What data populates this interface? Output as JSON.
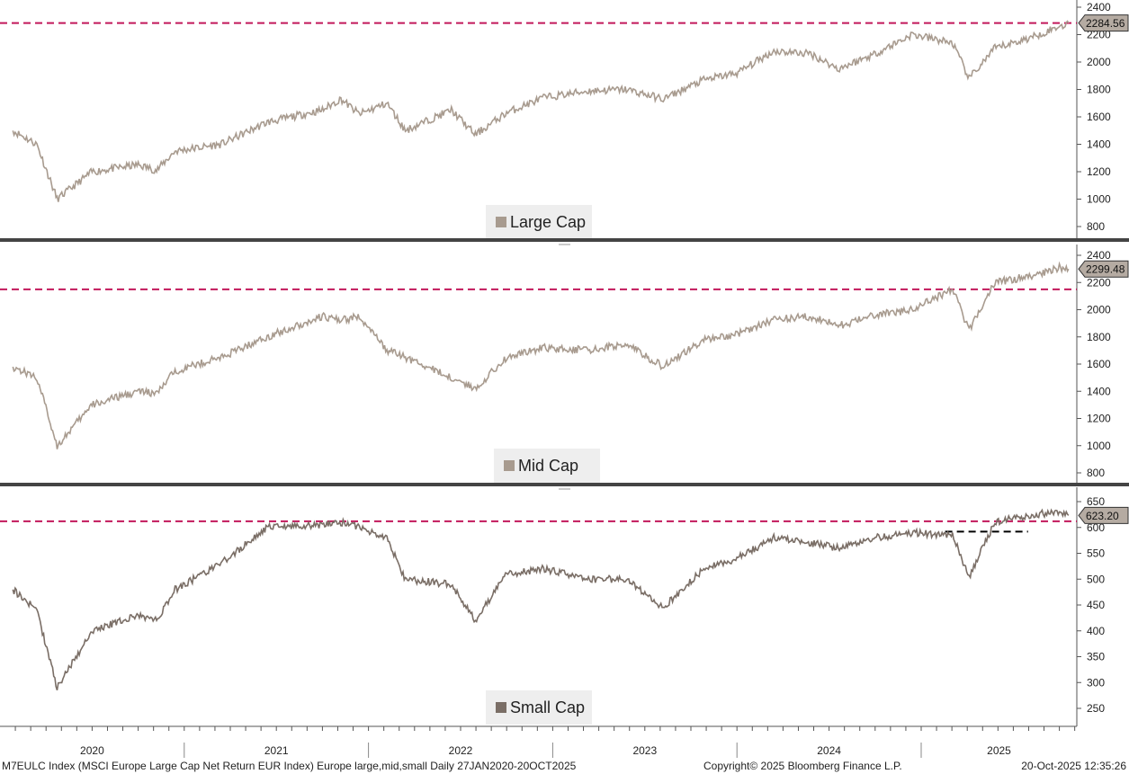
{
  "chart_data": [
    {
      "type": "line",
      "legend": "Large Cap",
      "ylim": [
        700,
        2430
      ],
      "yticks": [
        800,
        1000,
        1200,
        1400,
        1600,
        1800,
        2000,
        2200,
        2400
      ],
      "last_value_label": "2284.56",
      "last_value": 2284.56,
      "reference_line": 2284.56,
      "color": "#a89b8f",
      "x_years": [
        2020.07,
        2020.2,
        2020.31,
        2020.5,
        2020.75,
        2020.85,
        2020.95,
        2021.2,
        2021.45,
        2021.75,
        2021.85,
        2021.95,
        2022.1,
        2022.2,
        2022.45,
        2022.58,
        2022.75,
        2022.95,
        2023.2,
        2023.4,
        2023.6,
        2023.82,
        2024.0,
        2024.2,
        2024.4,
        2024.55,
        2024.75,
        2024.95,
        2025.17,
        2025.26,
        2025.4,
        2025.6,
        2025.75,
        2025.8
      ],
      "values": [
        1500,
        1400,
        1000,
        1200,
        1250,
        1210,
        1350,
        1400,
        1560,
        1650,
        1730,
        1620,
        1700,
        1500,
        1650,
        1470,
        1630,
        1740,
        1790,
        1800,
        1730,
        1870,
        1920,
        2080,
        2060,
        1950,
        2060,
        2200,
        2140,
        1880,
        2100,
        2180,
        2260,
        2284.56
      ]
    },
    {
      "type": "line",
      "legend": "Mid Cap",
      "ylim": [
        730,
        2430
      ],
      "yticks": [
        800,
        1000,
        1200,
        1400,
        1600,
        1800,
        2000,
        2200,
        2400
      ],
      "last_value_label": "2299.48",
      "last_value": 2299.48,
      "reference_line": 2150,
      "color": "#a89b8f",
      "x_years": [
        2020.07,
        2020.2,
        2020.31,
        2020.5,
        2020.75,
        2020.85,
        2020.95,
        2021.2,
        2021.45,
        2021.75,
        2021.85,
        2021.95,
        2022.1,
        2022.2,
        2022.45,
        2022.58,
        2022.75,
        2022.95,
        2023.2,
        2023.4,
        2023.6,
        2023.82,
        2024.0,
        2024.2,
        2024.4,
        2024.55,
        2024.75,
        2024.95,
        2025.17,
        2025.26,
        2025.4,
        2025.6,
        2025.75,
        2025.8
      ],
      "values": [
        1580,
        1500,
        1000,
        1300,
        1400,
        1380,
        1550,
        1650,
        1800,
        1950,
        1920,
        1950,
        1700,
        1650,
        1500,
        1420,
        1650,
        1720,
        1700,
        1750,
        1580,
        1780,
        1820,
        1930,
        1950,
        1880,
        1960,
        2000,
        2150,
        1850,
        2200,
        2250,
        2310,
        2299.48
      ]
    },
    {
      "type": "line",
      "legend": "Small Cap",
      "ylim": [
        215,
        660
      ],
      "yticks": [
        250,
        300,
        350,
        400,
        450,
        500,
        550,
        600,
        650
      ],
      "last_value_label": "623.20",
      "last_value": 623.2,
      "reference_line": 612,
      "support_line": 592,
      "color": "#7a6e66",
      "x_years": [
        2020.07,
        2020.2,
        2020.31,
        2020.5,
        2020.75,
        2020.85,
        2020.95,
        2021.2,
        2021.45,
        2021.75,
        2021.85,
        2021.95,
        2022.1,
        2022.2,
        2022.45,
        2022.58,
        2022.75,
        2022.95,
        2023.2,
        2023.4,
        2023.6,
        2023.82,
        2024.0,
        2024.2,
        2024.4,
        2024.55,
        2024.75,
        2024.95,
        2025.17,
        2025.26,
        2025.4,
        2025.6,
        2025.75,
        2025.8
      ],
      "values": [
        480,
        440,
        290,
        400,
        430,
        420,
        480,
        530,
        600,
        605,
        610,
        600,
        580,
        500,
        490,
        420,
        510,
        520,
        500,
        500,
        445,
        520,
        540,
        580,
        570,
        560,
        580,
        590,
        585,
        505,
        610,
        625,
        630,
        623.2
      ]
    }
  ],
  "x_axis": {
    "labels": [
      "2020",
      "2021",
      "2022",
      "2023",
      "2024",
      "2025"
    ]
  },
  "footer": {
    "description": "M7EULC Index (MSCI Europe Large Cap Net Return EUR Index) Europe large,mid,small Daily 27JAN2020-20OCT2025",
    "copyright": "Copyright© 2025 Bloomberg Finance L.P.",
    "timestamp": "20-Oct-2025 12:35:26"
  },
  "colors": {
    "reference_line": "#c2185b",
    "support_line": "#000000",
    "legend_bg": "#eeeeee",
    "value_tag": "#b5aba2",
    "divider": "#444444"
  }
}
